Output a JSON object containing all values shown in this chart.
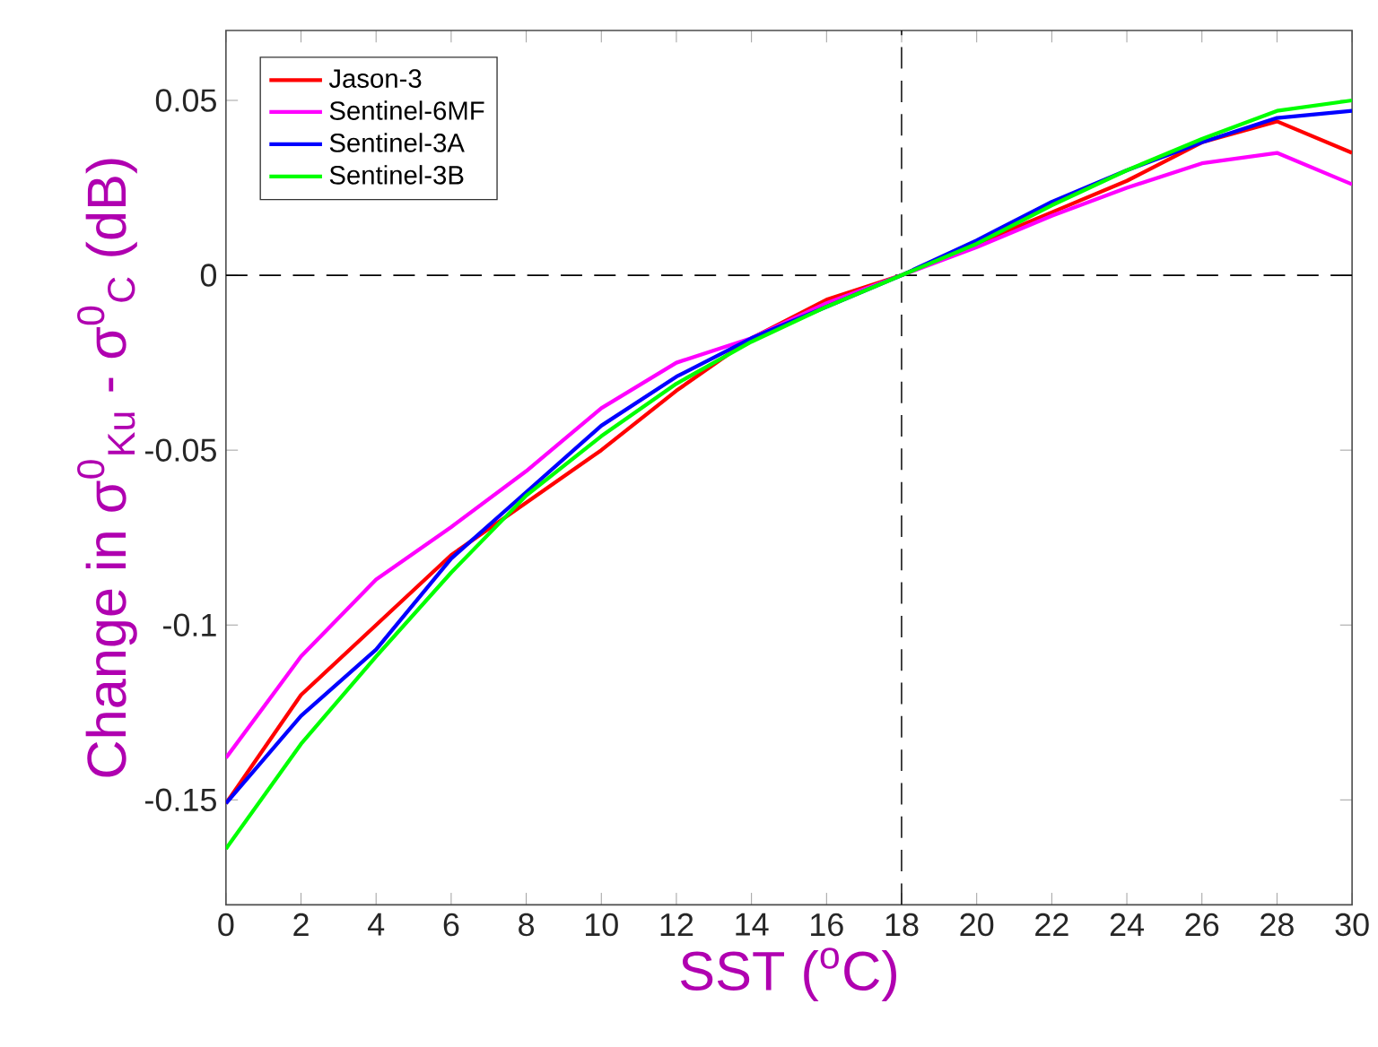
{
  "chart_data": {
    "type": "line",
    "xlabel": "SST ($^{o}$C)",
    "ylabel": "Change in σ$^{0}$$_{Ku}$ - σ$^{0}$$_{C}$ (dB)",
    "x": [
      0,
      2,
      4,
      6,
      8,
      10,
      12,
      14,
      16,
      18,
      20,
      22,
      24,
      26,
      28,
      30
    ],
    "series": [
      {
        "name": "Jason-3",
        "color": "#ff0000",
        "values": [
          -0.151,
          -0.12,
          -0.1,
          -0.08,
          -0.065,
          -0.05,
          -0.033,
          -0.018,
          -0.007,
          0,
          0.009,
          0.018,
          0.027,
          0.038,
          0.044,
          0.035
        ]
      },
      {
        "name": "Sentinel-6MF",
        "color": "#ff00ff",
        "values": [
          -0.138,
          -0.109,
          -0.087,
          -0.072,
          -0.056,
          -0.038,
          -0.025,
          -0.018,
          -0.008,
          0,
          0.008,
          0.017,
          0.025,
          0.032,
          0.035,
          0.026
        ]
      },
      {
        "name": "Sentinel-3A",
        "color": "#0000ff",
        "values": [
          -0.151,
          -0.126,
          -0.107,
          -0.081,
          -0.062,
          -0.043,
          -0.029,
          -0.018,
          -0.009,
          0,
          0.01,
          0.021,
          0.03,
          0.038,
          0.045,
          0.047
        ]
      },
      {
        "name": "Sentinel-3B",
        "color": "#00ff00",
        "values": [
          -0.164,
          -0.134,
          -0.109,
          -0.085,
          -0.063,
          -0.046,
          -0.031,
          -0.019,
          -0.009,
          0,
          0.009,
          0.02,
          0.03,
          0.039,
          0.047,
          0.05
        ]
      }
    ],
    "xlim": [
      0,
      30
    ],
    "ylim": [
      -0.18,
      0.07
    ],
    "xticks": [
      0,
      2,
      4,
      6,
      8,
      10,
      12,
      14,
      16,
      18,
      20,
      22,
      24,
      26,
      28,
      30
    ],
    "yticks": [
      -0.15,
      -0.1,
      -0.05,
      0,
      0.05
    ],
    "ref_lines": [
      {
        "axis": "x",
        "value": 18,
        "color": "#000000",
        "line_style": "dashed"
      },
      {
        "axis": "y",
        "value": 0,
        "color": "#000000",
        "line_style": "dashed"
      }
    ],
    "legend": "top left",
    "grid": false,
    "marker": "none",
    "line_style": "solid"
  }
}
